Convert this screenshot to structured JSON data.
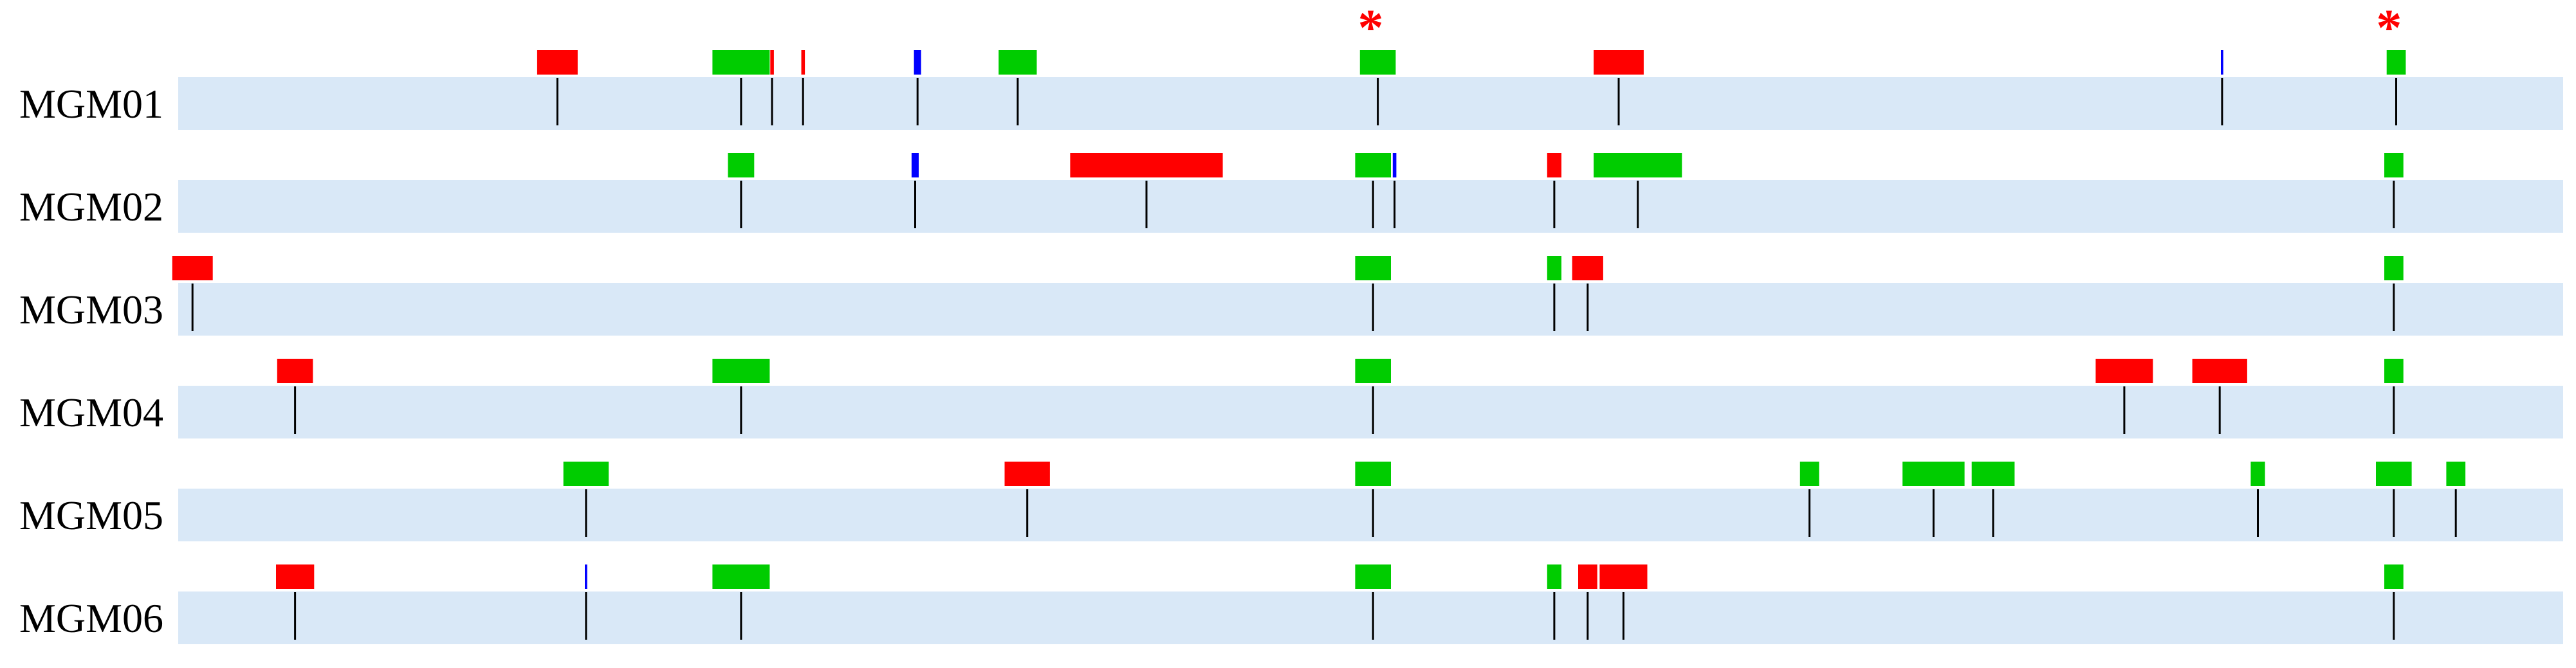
{
  "colors": {
    "track": "#d9e8f7",
    "tick": "#000000",
    "green": "#00cc00",
    "red": "#ff0000",
    "blue": "#0000ff",
    "asterisk": "#ff0000"
  },
  "markers": {
    "asterisk_symbol": "*"
  },
  "chart_data": {
    "type": "feature-track",
    "coordinate_unit": "relative position along track (0–1000)",
    "asterisk_positions": [
      500,
      927
    ],
    "tracks": [
      {
        "name": "MGM01",
        "features": [
          {
            "center": 159,
            "width": 17,
            "color": "red"
          },
          {
            "center": 236,
            "width": 24,
            "color": "green"
          },
          {
            "center": 249,
            "width": 1.5,
            "color": "red"
          },
          {
            "center": 262,
            "width": 1.5,
            "color": "red"
          },
          {
            "center": 310,
            "width": 3,
            "color": "blue"
          },
          {
            "center": 352,
            "width": 16,
            "color": "green"
          },
          {
            "center": 503,
            "width": 15,
            "color": "green"
          },
          {
            "center": 604,
            "width": 21,
            "color": "red"
          },
          {
            "center": 857,
            "width": 1,
            "color": "blue"
          },
          {
            "center": 930,
            "width": 8,
            "color": "green"
          }
        ]
      },
      {
        "name": "MGM02",
        "features": [
          {
            "center": 236,
            "width": 11,
            "color": "green"
          },
          {
            "center": 309,
            "width": 3,
            "color": "blue"
          },
          {
            "center": 406,
            "width": 64,
            "color": "red"
          },
          {
            "center": 501,
            "width": 15,
            "color": "green"
          },
          {
            "center": 510,
            "width": 1.5,
            "color": "blue"
          },
          {
            "center": 577,
            "width": 6,
            "color": "red"
          },
          {
            "center": 612,
            "width": 37,
            "color": "green"
          },
          {
            "center": 929,
            "width": 8,
            "color": "green"
          }
        ]
      },
      {
        "name": "MGM03",
        "features": [
          {
            "center": 6,
            "width": 17,
            "color": "red"
          },
          {
            "center": 501,
            "width": 15,
            "color": "green"
          },
          {
            "center": 577,
            "width": 6,
            "color": "green"
          },
          {
            "center": 591,
            "width": 13,
            "color": "red"
          },
          {
            "center": 929,
            "width": 8,
            "color": "green"
          }
        ]
      },
      {
        "name": "MGM04",
        "features": [
          {
            "center": 49,
            "width": 15,
            "color": "red"
          },
          {
            "center": 236,
            "width": 24,
            "color": "green"
          },
          {
            "center": 501,
            "width": 15,
            "color": "green"
          },
          {
            "center": 816,
            "width": 24,
            "color": "red"
          },
          {
            "center": 856,
            "width": 23,
            "color": "red"
          },
          {
            "center": 929,
            "width": 8,
            "color": "green"
          }
        ]
      },
      {
        "name": "MGM05",
        "features": [
          {
            "center": 171,
            "width": 19,
            "color": "green"
          },
          {
            "center": 356,
            "width": 19,
            "color": "red"
          },
          {
            "center": 501,
            "width": 15,
            "color": "green"
          },
          {
            "center": 684,
            "width": 8,
            "color": "green"
          },
          {
            "center": 736,
            "width": 26,
            "color": "green"
          },
          {
            "center": 761,
            "width": 18,
            "color": "green"
          },
          {
            "center": 872,
            "width": 6,
            "color": "green"
          },
          {
            "center": 929,
            "width": 15,
            "color": "green"
          },
          {
            "center": 955,
            "width": 8,
            "color": "green"
          }
        ]
      },
      {
        "name": "MGM06",
        "features": [
          {
            "center": 49,
            "width": 16,
            "color": "red"
          },
          {
            "center": 171,
            "width": 1,
            "color": "blue"
          },
          {
            "center": 236,
            "width": 24,
            "color": "green"
          },
          {
            "center": 501,
            "width": 15,
            "color": "green"
          },
          {
            "center": 577,
            "width": 6,
            "color": "green"
          },
          {
            "center": 591,
            "width": 8,
            "color": "red"
          },
          {
            "center": 606,
            "width": 20,
            "color": "red"
          },
          {
            "center": 929,
            "width": 8,
            "color": "green"
          }
        ]
      }
    ]
  }
}
